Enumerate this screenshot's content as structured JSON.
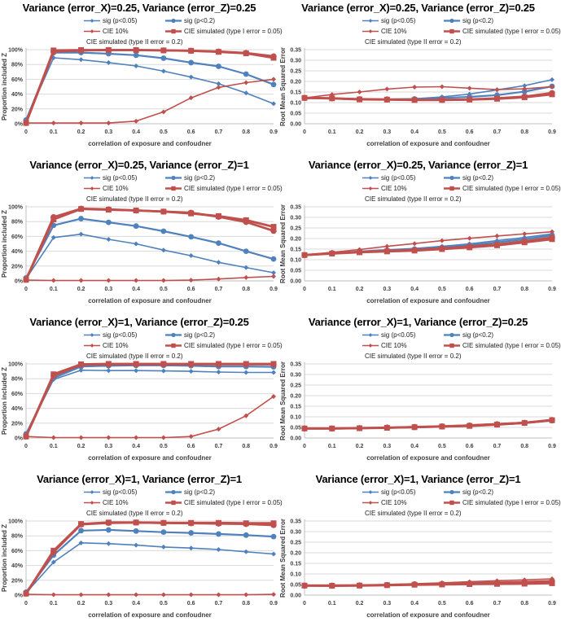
{
  "axis": {
    "xlabel": "correlation of exposure and confoudner",
    "xtick_labels": [
      "0",
      "0.1",
      "0.2",
      "0.3",
      "0.4",
      "0.5",
      "0.6",
      "0.7",
      "0.8",
      "0.9"
    ]
  },
  "colors": {
    "blue": "#4F81BD",
    "red": "#C0504D",
    "gridline": "#d9d9d9",
    "axis_line": "#bfbfbf",
    "tick_text": "#404040"
  },
  "series_styles": [
    {
      "key": "sig-p005",
      "name": "sig (p<0.05)",
      "color": "#4F81BD",
      "marker": "diamond",
      "line_width": 1.6,
      "marker_size": 3
    },
    {
      "key": "sig-p02",
      "name": "sig (p<0.2)",
      "color": "#4F81BD",
      "marker": "circle",
      "line_width": 2.2,
      "marker_size": 3.4
    },
    {
      "key": "cie-10pct",
      "name": "CIE 10%",
      "color": "#C0504D",
      "marker": "diamond",
      "line_width": 1.6,
      "marker_size": 3
    },
    {
      "key": "cie-sim-type1",
      "name": "CIE simulated (type I error = 0.05)",
      "color": "#C0504D",
      "marker": "square",
      "line_width": 2.8,
      "marker_size": 3.5
    },
    {
      "key": "cie-sim-type2",
      "name": "CIE simulated (type II error = 0.2)",
      "color": "#C0504D",
      "marker": "circle",
      "line_width": 2.8,
      "marker_size": 3.7
    }
  ],
  "legend_rows": [
    [
      0,
      1
    ],
    [
      2,
      3
    ],
    [
      4
    ]
  ],
  "chart_data": [
    {
      "id": "varx025-varz025-proportion",
      "type": "line",
      "title": "Variance (error_X)=0.25, Variance (error_Z)=0.25",
      "ylabel": "Proportion included Z",
      "xlabel": "correlation of exposure and confoudner",
      "ylim": [
        0,
        100
      ],
      "yticks": [
        0,
        20,
        40,
        60,
        80,
        100
      ],
      "ytick_labels": [
        "0%",
        "20%",
        "40%",
        "60%",
        "80%",
        "100%"
      ],
      "x": [
        0,
        0.1,
        0.2,
        0.3,
        0.4,
        0.5,
        0.6,
        0.7,
        0.8,
        0.9
      ],
      "series": [
        {
          "name": "sig (p<0.05)",
          "values": [
            5,
            89,
            86.5,
            82.5,
            78,
            71,
            63,
            54,
            41.5,
            27
          ]
        },
        {
          "name": "sig (p<0.2)",
          "values": [
            5,
            96,
            96,
            94.5,
            92.5,
            88.5,
            82.5,
            77.5,
            67,
            53
          ]
        },
        {
          "name": "CIE 10%",
          "values": [
            1,
            1,
            1,
            1,
            3.5,
            16,
            35,
            49,
            55.5,
            60
          ]
        },
        {
          "name": "CIE simulated (type I error = 0.05)",
          "values": [
            1,
            99,
            99.5,
            99.5,
            99.5,
            99,
            98.5,
            97,
            95,
            89
          ]
        },
        {
          "name": "CIE simulated (type II error = 0.2)",
          "values": [
            1,
            97.5,
            99,
            99.5,
            99.5,
            99,
            98.5,
            97.5,
            95.5,
            91
          ]
        }
      ]
    },
    {
      "id": "varx025-varz025-rmse",
      "type": "line",
      "title": "Variance (error_X)=0.25, Variance (error_Z)=0.25",
      "ylabel": "Root Mean Squared Error",
      "xlabel": "correlation of exposure and confoudner",
      "ylim": [
        0,
        0.35
      ],
      "yticks": [
        0,
        0.05,
        0.1,
        0.15,
        0.2,
        0.25,
        0.3,
        0.35
      ],
      "ytick_labels": [
        "0.00",
        "0.05",
        "0.10",
        "0.15",
        "0.20",
        "0.25",
        "0.30",
        "0.35"
      ],
      "x": [
        0,
        0.1,
        0.2,
        0.3,
        0.4,
        0.5,
        0.6,
        0.7,
        0.8,
        0.9
      ],
      "series": [
        {
          "name": "sig (p<0.05)",
          "values": [
            0.122,
            0.121,
            0.116,
            0.116,
            0.118,
            0.127,
            0.14,
            0.16,
            0.18,
            0.208
          ]
        },
        {
          "name": "sig (p<0.2)",
          "values": [
            0.122,
            0.12,
            0.115,
            0.115,
            0.117,
            0.122,
            0.127,
            0.135,
            0.152,
            0.177
          ]
        },
        {
          "name": "CIE 10%",
          "values": [
            0.122,
            0.138,
            0.15,
            0.164,
            0.173,
            0.175,
            0.168,
            0.161,
            0.165,
            0.175
          ]
        },
        {
          "name": "CIE simulated (type I error = 0.05)",
          "values": [
            0.122,
            0.12,
            0.115,
            0.114,
            0.112,
            0.112,
            0.114,
            0.118,
            0.125,
            0.139
          ]
        },
        {
          "name": "CIE simulated (type II error = 0.2)",
          "values": [
            0.122,
            0.12,
            0.116,
            0.115,
            0.113,
            0.113,
            0.115,
            0.12,
            0.128,
            0.145
          ]
        }
      ]
    },
    {
      "id": "varx025-varz1-proportion",
      "type": "line",
      "title": "Variance (error_X)=0.25, Variance (error_Z)=1",
      "ylabel": "Proportion included Z",
      "xlabel": "correlation of exposure and confoudner",
      "ylim": [
        0,
        100
      ],
      "yticks": [
        0,
        20,
        40,
        60,
        80,
        100
      ],
      "ytick_labels": [
        "0%",
        "20%",
        "40%",
        "60%",
        "80%",
        "100%"
      ],
      "x": [
        0,
        0.1,
        0.2,
        0.3,
        0.4,
        0.5,
        0.6,
        0.7,
        0.8,
        0.9
      ],
      "series": [
        {
          "name": "sig (p<0.05)",
          "values": [
            3,
            58.5,
            63,
            56,
            50,
            41.5,
            34,
            25,
            18,
            11
          ]
        },
        {
          "name": "sig (p<0.2)",
          "values": [
            4,
            75,
            84,
            79,
            74,
            67,
            59.5,
            51,
            40,
            29.5
          ]
        },
        {
          "name": "CIE 10%",
          "values": [
            1,
            0.5,
            0.5,
            0.5,
            0.5,
            0.5,
            1,
            2.5,
            4.5,
            6
          ]
        },
        {
          "name": "CIE simulated (type I error = 0.05)",
          "values": [
            1.5,
            83,
            97,
            96,
            95,
            93.5,
            91,
            87.5,
            82,
            73
          ]
        },
        {
          "name": "CIE simulated (type II error = 0.2)",
          "values": [
            1.5,
            86,
            97.5,
            96.5,
            95,
            93.5,
            92,
            86.5,
            79.5,
            67.5
          ]
        }
      ]
    },
    {
      "id": "varx025-varz1-rmse",
      "type": "line",
      "title": "Variance (error_X)=0.25, Variance (error_Z)=1",
      "ylabel": "Root Mean Squared Error",
      "xlabel": "correlation of exposure and confoudner",
      "ylim": [
        0,
        0.35
      ],
      "yticks": [
        0,
        0.05,
        0.1,
        0.15,
        0.2,
        0.25,
        0.3,
        0.35
      ],
      "ytick_labels": [
        "0.00",
        "0.05",
        "0.10",
        "0.15",
        "0.20",
        "0.25",
        "0.30",
        "0.35"
      ],
      "x": [
        0,
        0.1,
        0.2,
        0.3,
        0.4,
        0.5,
        0.6,
        0.7,
        0.8,
        0.9
      ],
      "series": [
        {
          "name": "sig (p<0.05)",
          "values": [
            0.122,
            0.132,
            0.14,
            0.147,
            0.153,
            0.163,
            0.175,
            0.19,
            0.205,
            0.222
          ]
        },
        {
          "name": "sig (p<0.2)",
          "values": [
            0.122,
            0.13,
            0.138,
            0.144,
            0.15,
            0.158,
            0.169,
            0.182,
            0.197,
            0.215
          ]
        },
        {
          "name": "CIE 10%",
          "values": [
            0.122,
            0.135,
            0.148,
            0.163,
            0.176,
            0.19,
            0.201,
            0.212,
            0.222,
            0.232
          ]
        },
        {
          "name": "CIE simulated (type I error = 0.05)",
          "values": [
            0.122,
            0.129,
            0.135,
            0.139,
            0.143,
            0.15,
            0.158,
            0.168,
            0.182,
            0.197
          ]
        },
        {
          "name": "CIE simulated (type II error = 0.2)",
          "values": [
            0.122,
            0.131,
            0.137,
            0.141,
            0.146,
            0.153,
            0.162,
            0.172,
            0.187,
            0.205
          ]
        }
      ]
    },
    {
      "id": "varx1-varz025-proportion",
      "type": "line",
      "title": "Variance (error_X)=1, Variance (error_Z)=0.25",
      "ylabel": "Proportion included Z",
      "xlabel": "correlation of exposure and confoudner",
      "ylim": [
        0,
        100
      ],
      "yticks": [
        0,
        20,
        40,
        60,
        80,
        100
      ],
      "ytick_labels": [
        "0%",
        "20%",
        "40%",
        "60%",
        "80%",
        "100%"
      ],
      "x": [
        0,
        0.1,
        0.2,
        0.3,
        0.4,
        0.5,
        0.6,
        0.7,
        0.8,
        0.9
      ],
      "series": [
        {
          "name": "sig (p<0.05)",
          "values": [
            5,
            79,
            91.5,
            91,
            91,
            90.5,
            90,
            89,
            88.5,
            88.5
          ]
        },
        {
          "name": "sig (p<0.2)",
          "values": [
            5.5,
            81,
            96.5,
            97.5,
            98,
            98,
            97.5,
            96.5,
            96.5,
            96
          ]
        },
        {
          "name": "CIE 10%",
          "values": [
            2,
            0.5,
            0.5,
            0.5,
            0.5,
            0.5,
            2,
            12,
            30,
            56
          ]
        },
        {
          "name": "CIE simulated (type I error = 0.05)",
          "values": [
            2,
            86,
            99.5,
            100,
            100,
            100,
            100,
            100,
            100,
            100
          ]
        },
        {
          "name": "CIE simulated (type II error = 0.2)",
          "values": [
            2,
            84,
            99,
            99.5,
            99.5,
            99.5,
            99.5,
            99.5,
            99.5,
            99.5
          ]
        }
      ]
    },
    {
      "id": "varx1-varz025-rmse",
      "type": "line",
      "title": "Variance (error_X)=1, Variance (error_Z)=0.25",
      "ylabel": "Root Mean Squared Error",
      "xlabel": "correlation of exposure and confoudner",
      "ylim": [
        0,
        0.35
      ],
      "yticks": [
        0,
        0.05,
        0.1,
        0.15,
        0.2,
        0.25,
        0.3,
        0.35
      ],
      "ytick_labels": [
        "0.00",
        "0.05",
        "0.10",
        "0.15",
        "0.20",
        "0.25",
        "0.30",
        "0.35"
      ],
      "x": [
        0,
        0.1,
        0.2,
        0.3,
        0.4,
        0.5,
        0.6,
        0.7,
        0.8,
        0.9
      ],
      "series": [
        {
          "name": "sig (p<0.05)",
          "values": [
            0.045,
            0.045,
            0.046,
            0.048,
            0.051,
            0.054,
            0.058,
            0.064,
            0.071,
            0.083
          ]
        },
        {
          "name": "sig (p<0.2)",
          "values": [
            0.045,
            0.045,
            0.046,
            0.048,
            0.05,
            0.053,
            0.057,
            0.063,
            0.07,
            0.082
          ]
        },
        {
          "name": "CIE 10%",
          "values": [
            0.045,
            0.046,
            0.047,
            0.049,
            0.052,
            0.056,
            0.062,
            0.068,
            0.074,
            0.087
          ]
        },
        {
          "name": "CIE simulated (type I error = 0.05)",
          "values": [
            0.045,
            0.045,
            0.046,
            0.048,
            0.051,
            0.054,
            0.057,
            0.063,
            0.071,
            0.084
          ]
        },
        {
          "name": "CIE simulated (type II error = 0.2)",
          "values": [
            0.045,
            0.045,
            0.047,
            0.049,
            0.052,
            0.055,
            0.059,
            0.065,
            0.072,
            0.085
          ]
        }
      ]
    },
    {
      "id": "varx1-varz1-proportion",
      "type": "line",
      "title": "Variance (error_X)=1, Variance (error_Z)=1",
      "ylabel": "Proportion included Z",
      "xlabel": "correlation of exposure and confoudner",
      "ylim": [
        0,
        100
      ],
      "yticks": [
        0,
        20,
        40,
        60,
        80,
        100
      ],
      "ytick_labels": [
        "0%",
        "20%",
        "40%",
        "60%",
        "80%",
        "100%"
      ],
      "x": [
        0,
        0.1,
        0.2,
        0.3,
        0.4,
        0.5,
        0.6,
        0.7,
        0.8,
        0.9
      ],
      "series": [
        {
          "name": "sig (p<0.05)",
          "values": [
            3,
            44.5,
            70.5,
            69.5,
            67.5,
            65,
            63.5,
            61.5,
            58.5,
            55.5
          ]
        },
        {
          "name": "sig (p<0.2)",
          "values": [
            4,
            54,
            87,
            88,
            86.5,
            85,
            84,
            82.5,
            81,
            79
          ]
        },
        {
          "name": "CIE 10%",
          "values": [
            1,
            0.5,
            0.5,
            0.5,
            0.5,
            0.5,
            0.5,
            0.5,
            0.5,
            1
          ]
        },
        {
          "name": "CIE simulated (type I error = 0.05)",
          "values": [
            2,
            60,
            96,
            98,
            98,
            97.5,
            97.5,
            97.5,
            97,
            97
          ]
        },
        {
          "name": "CIE simulated (type II error = 0.2)",
          "values": [
            2,
            58,
            95.5,
            97.5,
            98,
            97.5,
            97,
            96.5,
            96,
            94.5
          ]
        }
      ]
    },
    {
      "id": "varx1-varz1-rmse",
      "type": "line",
      "title": "Variance (error_X)=1, Variance (error_Z)=1",
      "ylabel": "Root Mean Squared Error",
      "xlabel": "correlation of exposure and confoudner",
      "ylim": [
        0,
        0.35
      ],
      "yticks": [
        0,
        0.05,
        0.1,
        0.15,
        0.2,
        0.25,
        0.3,
        0.35
      ],
      "ytick_labels": [
        "0.00",
        "0.05",
        "0.10",
        "0.15",
        "0.20",
        "0.25",
        "0.30",
        "0.35"
      ],
      "x": [
        0,
        0.1,
        0.2,
        0.3,
        0.4,
        0.5,
        0.6,
        0.7,
        0.8,
        0.9
      ],
      "series": [
        {
          "name": "sig (p<0.05)",
          "values": [
            0.045,
            0.045,
            0.046,
            0.048,
            0.051,
            0.053,
            0.056,
            0.058,
            0.061,
            0.065
          ]
        },
        {
          "name": "sig (p<0.2)",
          "values": [
            0.045,
            0.045,
            0.046,
            0.048,
            0.05,
            0.052,
            0.055,
            0.057,
            0.06,
            0.063
          ]
        },
        {
          "name": "CIE 10%",
          "values": [
            0.045,
            0.045,
            0.047,
            0.05,
            0.054,
            0.058,
            0.063,
            0.068,
            0.072,
            0.077
          ]
        },
        {
          "name": "CIE simulated (type I error = 0.05)",
          "values": [
            0.045,
            0.044,
            0.045,
            0.047,
            0.049,
            0.05,
            0.052,
            0.053,
            0.054,
            0.056
          ]
        },
        {
          "name": "CIE simulated (type II error = 0.2)",
          "values": [
            0.045,
            0.045,
            0.046,
            0.048,
            0.051,
            0.053,
            0.056,
            0.059,
            0.062,
            0.066
          ]
        }
      ]
    }
  ]
}
